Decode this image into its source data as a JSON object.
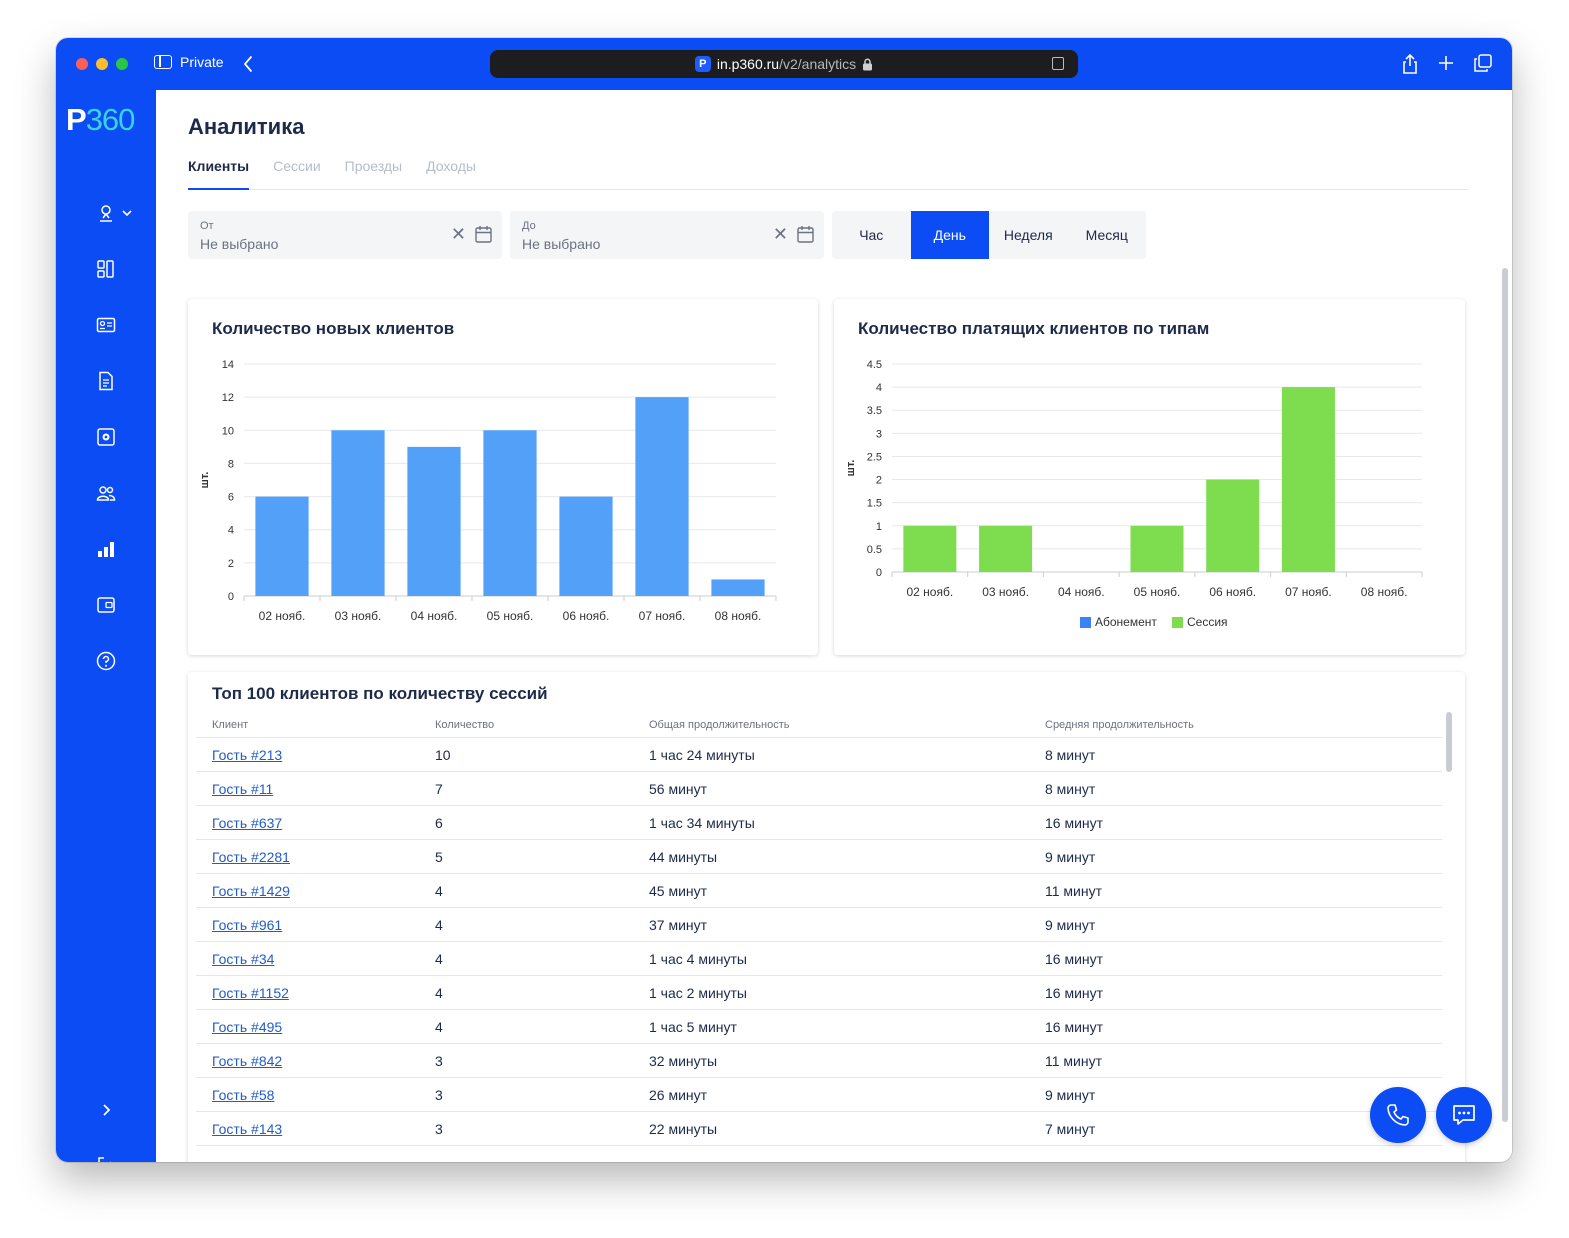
{
  "browser": {
    "mode_label": "Private",
    "url_host": "in.p360.ru",
    "url_path": "/v2/analytics",
    "favicon_letter": "P"
  },
  "logo": {
    "letter": "P",
    "number": "360"
  },
  "sidebar": {
    "items": [
      {
        "icon": "user-location-icon"
      },
      {
        "icon": "dashboard-icon"
      },
      {
        "icon": "id-card-icon"
      },
      {
        "icon": "document-icon"
      },
      {
        "icon": "settings-box-icon"
      },
      {
        "icon": "users-icon"
      },
      {
        "icon": "analytics-icon"
      },
      {
        "icon": "wallet-icon"
      },
      {
        "icon": "help-icon"
      }
    ],
    "expand_icon": "chevron-right-icon",
    "logout_icon": "logout-icon"
  },
  "page": {
    "title": "Аналитика",
    "tabs": [
      {
        "label": "Клиенты",
        "active": true
      },
      {
        "label": "Сессии",
        "active": false
      },
      {
        "label": "Проезды",
        "active": false
      },
      {
        "label": "Доходы",
        "active": false
      }
    ]
  },
  "filters": {
    "from": {
      "label": "От",
      "value": "Не выбрано"
    },
    "to": {
      "label": "До",
      "value": "Не выбрано"
    },
    "clear_symbol": "✕",
    "periods": [
      {
        "label": "Час",
        "active": false
      },
      {
        "label": "День",
        "active": true
      },
      {
        "label": "Неделя",
        "active": false
      },
      {
        "label": "Месяц",
        "active": false
      }
    ]
  },
  "chart_data": [
    {
      "type": "bar",
      "title": "Количество новых клиентов",
      "ylabel": "шт.",
      "xlabel": "",
      "categories": [
        "02 нояб.",
        "03 нояб.",
        "04 нояб.",
        "05 нояб.",
        "06 нояб.",
        "07 нояб.",
        "08 нояб."
      ],
      "values": [
        6,
        10,
        9,
        10,
        6,
        12,
        1
      ],
      "ylim": [
        0,
        14
      ],
      "yticks": [
        "0",
        "2",
        "4",
        "6",
        "8",
        "10",
        "12",
        "14"
      ],
      "color": "#53a0f8",
      "grid": true
    },
    {
      "type": "bar",
      "title": "Количество платящих клиентов по типам",
      "ylabel": "шт.",
      "xlabel": "",
      "categories": [
        "02 нояб.",
        "03 нояб.",
        "04 нояб.",
        "05 нояб.",
        "06 нояб.",
        "07 нояб.",
        "08 нояб."
      ],
      "series": [
        {
          "name": "Абонемент",
          "color": "#3b82f6",
          "values": [
            0,
            0,
            0,
            0,
            0,
            0,
            0
          ]
        },
        {
          "name": "Сессия",
          "color": "#7ddd4f",
          "values": [
            1,
            1,
            0,
            1,
            2,
            4,
            0
          ]
        }
      ],
      "ylim": [
        0,
        4.5
      ],
      "yticks": [
        "0",
        "0.5",
        "1",
        "1.5",
        "2",
        "2.5",
        "3",
        "3.5",
        "4",
        "4.5"
      ],
      "legend": "bottom",
      "grid": true
    }
  ],
  "top_table": {
    "title": "Топ 100 клиентов по количеству сессий",
    "columns": [
      "Клиент",
      "Количество",
      "Общая продолжительность",
      "Средняя продолжительность"
    ],
    "rows": [
      [
        "Гость #213",
        "10",
        "1 час 24 минуты",
        "8 минут"
      ],
      [
        "Гость #11",
        "7",
        "56 минут",
        "8 минут"
      ],
      [
        "Гость #637",
        "6",
        "1 час 34 минуты",
        "16 минут"
      ],
      [
        "Гость #2281",
        "5",
        "44 минуты",
        "9 минут"
      ],
      [
        "Гость #1429",
        "4",
        "45 минут",
        "11 минут"
      ],
      [
        "Гость #961",
        "4",
        "37 минут",
        "9 минут"
      ],
      [
        "Гость #34",
        "4",
        "1 час 4 минуты",
        "16 минут"
      ],
      [
        "Гость #1152",
        "4",
        "1 час 2 минуты",
        "16 минут"
      ],
      [
        "Гость #495",
        "4",
        "1 час 5 минут",
        "16 минут"
      ],
      [
        "Гость #842",
        "3",
        "32 минуты",
        "11 минут"
      ],
      [
        "Гость #58",
        "3",
        "26 минут",
        "9 минут"
      ],
      [
        "Гость #143",
        "3",
        "22 минуты",
        "7 минут"
      ]
    ]
  },
  "fabs": [
    {
      "icon": "phone-icon"
    },
    {
      "icon": "chat-icon"
    }
  ]
}
